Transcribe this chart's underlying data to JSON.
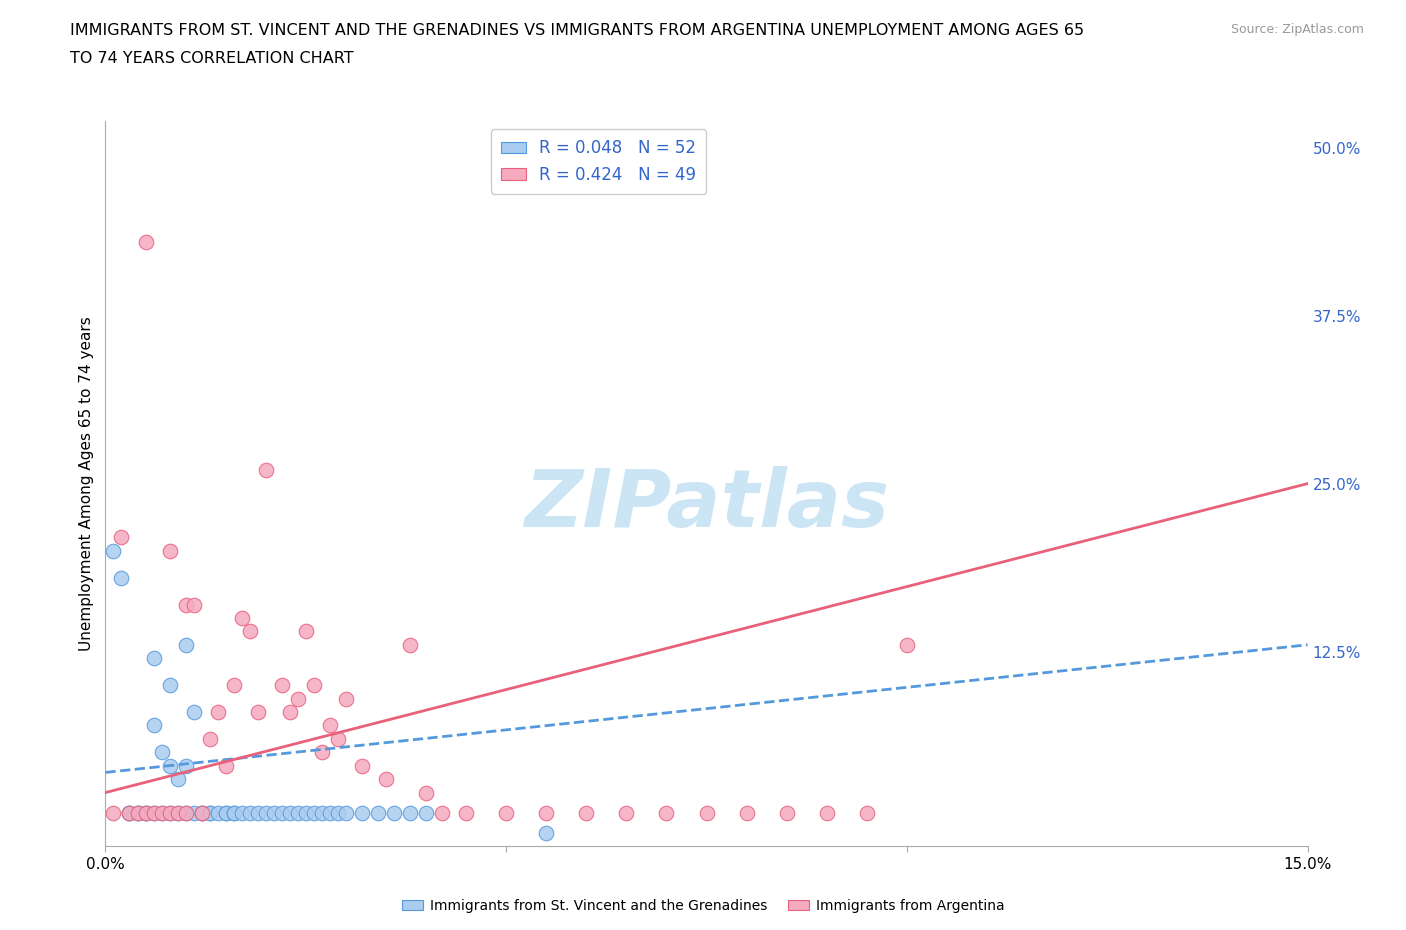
{
  "title_line1": "IMMIGRANTS FROM ST. VINCENT AND THE GRENADINES VS IMMIGRANTS FROM ARGENTINA UNEMPLOYMENT AMONG AGES 65",
  "title_line2": "TO 74 YEARS CORRELATION CHART",
  "source_text": "Source: ZipAtlas.com",
  "ylabel": "Unemployment Among Ages 65 to 74 years",
  "xlim": [
    0.0,
    0.15
  ],
  "ylim": [
    -0.02,
    0.52
  ],
  "yticks_right": [
    0.0,
    0.125,
    0.25,
    0.375,
    0.5
  ],
  "ytick_labels_right": [
    "",
    "12.5%",
    "25.0%",
    "37.5%",
    "50.0%"
  ],
  "r_blue": 0.048,
  "n_blue": 52,
  "r_pink": 0.424,
  "n_pink": 49,
  "blue_color": "#aaccf0",
  "blue_line_color": "#5599dd",
  "pink_color": "#f5aac0",
  "pink_line_color": "#e8607a",
  "watermark_color": "#cce5f5",
  "watermark_text": "ZIPatlas",
  "legend_r_color": "#3366cc",
  "blue_scatter_x": [
    0.001,
    0.002,
    0.003,
    0.003,
    0.004,
    0.004,
    0.005,
    0.005,
    0.006,
    0.006,
    0.006,
    0.007,
    0.007,
    0.008,
    0.008,
    0.008,
    0.009,
    0.009,
    0.01,
    0.01,
    0.01,
    0.011,
    0.011,
    0.012,
    0.012,
    0.013,
    0.013,
    0.014,
    0.015,
    0.015,
    0.016,
    0.016,
    0.017,
    0.018,
    0.019,
    0.02,
    0.021,
    0.022,
    0.023,
    0.024,
    0.025,
    0.026,
    0.027,
    0.028,
    0.029,
    0.03,
    0.032,
    0.034,
    0.036,
    0.038,
    0.04,
    0.055
  ],
  "blue_scatter_y": [
    0.2,
    0.18,
    0.005,
    0.005,
    0.005,
    0.005,
    0.005,
    0.005,
    0.12,
    0.07,
    0.005,
    0.05,
    0.005,
    0.04,
    0.1,
    0.005,
    0.03,
    0.005,
    0.13,
    0.04,
    0.005,
    0.08,
    0.005,
    0.005,
    0.005,
    0.005,
    0.005,
    0.005,
    0.005,
    0.005,
    0.005,
    0.005,
    0.005,
    0.005,
    0.005,
    0.005,
    0.005,
    0.005,
    0.005,
    0.005,
    0.005,
    0.005,
    0.005,
    0.005,
    0.005,
    0.005,
    0.005,
    0.005,
    0.005,
    0.005,
    0.005,
    -0.01
  ],
  "pink_scatter_x": [
    0.001,
    0.002,
    0.003,
    0.004,
    0.005,
    0.005,
    0.006,
    0.007,
    0.008,
    0.008,
    0.009,
    0.01,
    0.01,
    0.011,
    0.012,
    0.013,
    0.014,
    0.015,
    0.016,
    0.017,
    0.018,
    0.019,
    0.02,
    0.022,
    0.023,
    0.024,
    0.025,
    0.026,
    0.027,
    0.028,
    0.029,
    0.03,
    0.032,
    0.035,
    0.038,
    0.04,
    0.042,
    0.045,
    0.05,
    0.055,
    0.06,
    0.065,
    0.07,
    0.075,
    0.08,
    0.085,
    0.09,
    0.095,
    0.1
  ],
  "pink_scatter_y": [
    0.005,
    0.21,
    0.005,
    0.005,
    0.43,
    0.005,
    0.005,
    0.005,
    0.005,
    0.2,
    0.005,
    0.16,
    0.005,
    0.16,
    0.005,
    0.06,
    0.08,
    0.04,
    0.1,
    0.15,
    0.14,
    0.08,
    0.26,
    0.1,
    0.08,
    0.09,
    0.14,
    0.1,
    0.05,
    0.07,
    0.06,
    0.09,
    0.04,
    0.03,
    0.13,
    0.02,
    0.005,
    0.005,
    0.005,
    0.005,
    0.005,
    0.005,
    0.005,
    0.005,
    0.005,
    0.005,
    0.005,
    0.005,
    0.13
  ]
}
